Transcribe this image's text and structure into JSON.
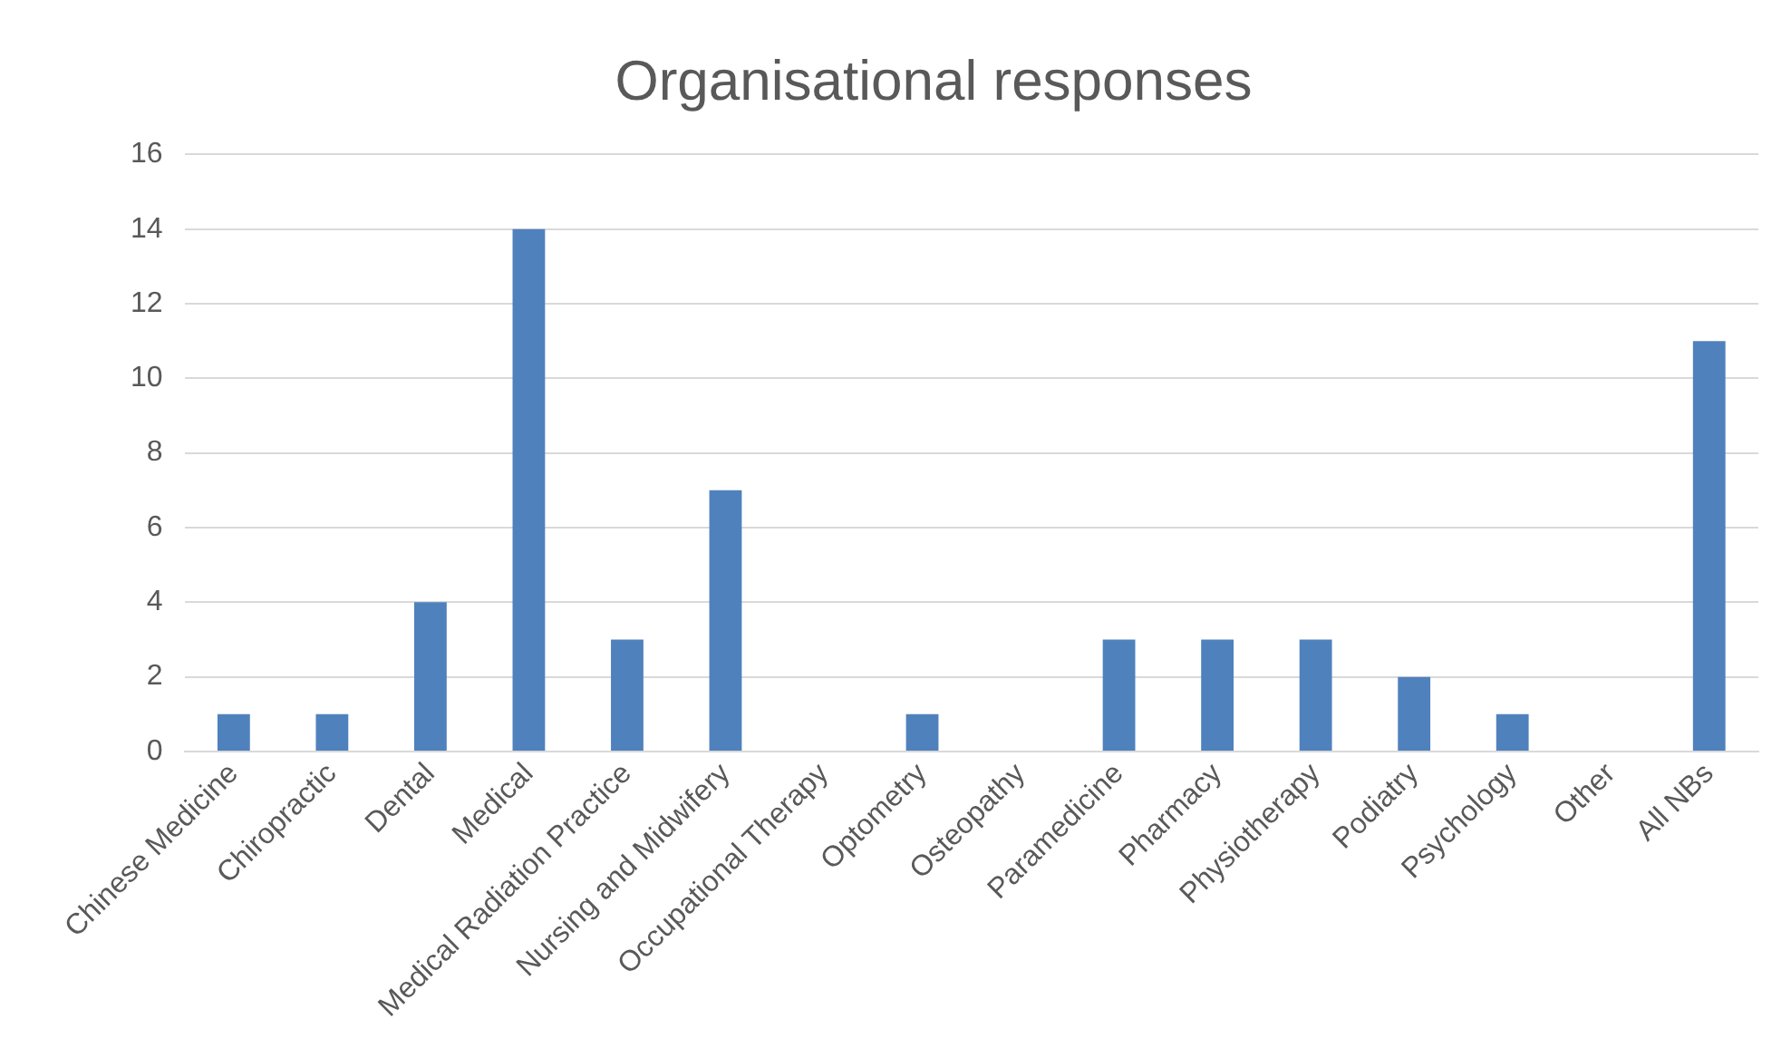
{
  "chart_data": {
    "type": "bar",
    "title": "Organisational responses",
    "categories": [
      "Chinese Medicine",
      "Chiropractic",
      "Dental",
      "Medical",
      "Medical Radiation Practice",
      "Nursing and Midwifery",
      "Occupational Therapy",
      "Optometry",
      "Osteopathy",
      "Paramedicine",
      "Pharmacy",
      "Physiotherapy",
      "Podiatry",
      "Psychology",
      "Other",
      "All NBs"
    ],
    "values": [
      1,
      1,
      4,
      14,
      3,
      7,
      0,
      1,
      0,
      3,
      3,
      3,
      2,
      1,
      0,
      11
    ],
    "color": "#4f81bd",
    "ylim": [
      0,
      16
    ],
    "yticks": [
      0,
      2,
      4,
      6,
      8,
      10,
      12,
      14,
      16
    ],
    "grid": "y"
  }
}
